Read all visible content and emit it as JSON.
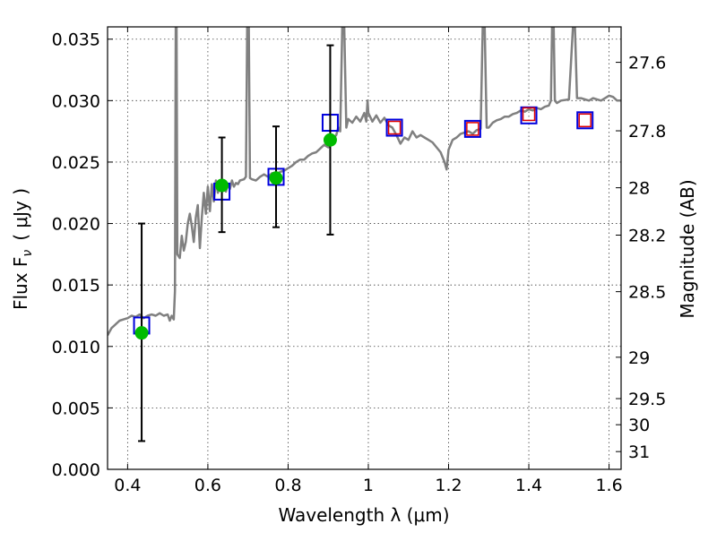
{
  "chart_data": {
    "type": "scatter",
    "xlabel": "Wavelength  λ (μm)",
    "ylabel": "Flux  F",
    "ylabel_sub": "ν",
    "ylabel_units": "( μJy )",
    "y2label": "Magnitude (AB)",
    "xlim": [
      0.35,
      1.63
    ],
    "ylim": [
      0.0,
      0.036
    ],
    "x_ticks": [
      0.4,
      0.6,
      0.8,
      1.0,
      1.2,
      1.4,
      1.6
    ],
    "x_tick_labels": [
      "0.4",
      "0.6",
      "0.8",
      "1",
      "1.2",
      "1.4",
      "1.6"
    ],
    "y_ticks": [
      0.0,
      0.005,
      0.01,
      0.015,
      0.02,
      0.025,
      0.03,
      0.035
    ],
    "y_tick_labels": [
      "0.000",
      "0.005",
      "0.010",
      "0.015",
      "0.020",
      "0.025",
      "0.030",
      "0.035"
    ],
    "y2_ticks": [
      27.6,
      27.8,
      28,
      28.2,
      28.5,
      29,
      29.5,
      30,
      31
    ],
    "y2_tick_labels": [
      "27.6",
      "27.8",
      "28",
      "28.2",
      "28.5",
      "29",
      "29.5",
      "30",
      "31"
    ],
    "grid": true,
    "colors": {
      "spectrum": "#808080",
      "model_box": "#0000dd",
      "model_box_inner": "#dd0000",
      "observed": "#00bb00",
      "errorbar": "#000000"
    },
    "series": [
      {
        "type": "line",
        "points": [
          [
            0.35,
            0.0109
          ],
          [
            0.36,
            0.0115
          ],
          [
            0.37,
            0.0118
          ],
          [
            0.38,
            0.0121
          ],
          [
            0.39,
            0.0122
          ],
          [
            0.4,
            0.0123
          ],
          [
            0.41,
            0.0125
          ],
          [
            0.42,
            0.0124
          ],
          [
            0.43,
            0.0126
          ],
          [
            0.44,
            0.0123
          ],
          [
            0.45,
            0.0125
          ],
          [
            0.46,
            0.0126
          ],
          [
            0.47,
            0.0125
          ],
          [
            0.48,
            0.0127
          ],
          [
            0.49,
            0.0125
          ],
          [
            0.5,
            0.0126
          ],
          [
            0.505,
            0.0121
          ],
          [
            0.51,
            0.0125
          ],
          [
            0.515,
            0.0122
          ],
          [
            0.518,
            0.0145
          ],
          [
            0.52,
            0.036
          ],
          [
            0.522,
            0.036
          ],
          [
            0.524,
            0.0175
          ],
          [
            0.53,
            0.0172
          ],
          [
            0.535,
            0.019
          ],
          [
            0.54,
            0.0178
          ],
          [
            0.545,
            0.0185
          ],
          [
            0.55,
            0.02
          ],
          [
            0.555,
            0.0208
          ],
          [
            0.56,
            0.0198
          ],
          [
            0.565,
            0.0185
          ],
          [
            0.57,
            0.0205
          ],
          [
            0.575,
            0.0215
          ],
          [
            0.58,
            0.018
          ],
          [
            0.585,
            0.0205
          ],
          [
            0.59,
            0.0225
          ],
          [
            0.595,
            0.0208
          ],
          [
            0.6,
            0.023
          ],
          [
            0.605,
            0.021
          ],
          [
            0.61,
            0.0232
          ],
          [
            0.615,
            0.0218
          ],
          [
            0.62,
            0.0235
          ],
          [
            0.625,
            0.0225
          ],
          [
            0.63,
            0.023
          ],
          [
            0.635,
            0.0228
          ],
          [
            0.64,
            0.0232
          ],
          [
            0.645,
            0.0226
          ],
          [
            0.65,
            0.0232
          ],
          [
            0.655,
            0.0228
          ],
          [
            0.66,
            0.0235
          ],
          [
            0.665,
            0.023
          ],
          [
            0.67,
            0.0233
          ],
          [
            0.675,
            0.0232
          ],
          [
            0.68,
            0.0235
          ],
          [
            0.69,
            0.0236
          ],
          [
            0.695,
            0.0238
          ],
          [
            0.698,
            0.036
          ],
          [
            0.702,
            0.036
          ],
          [
            0.705,
            0.0237
          ],
          [
            0.71,
            0.0236
          ],
          [
            0.72,
            0.0235
          ],
          [
            0.73,
            0.0238
          ],
          [
            0.74,
            0.024
          ],
          [
            0.75,
            0.0238
          ],
          [
            0.76,
            0.0241
          ],
          [
            0.77,
            0.0239
          ],
          [
            0.78,
            0.0242
          ],
          [
            0.79,
            0.0243
          ],
          [
            0.8,
            0.0245
          ],
          [
            0.81,
            0.0247
          ],
          [
            0.82,
            0.025
          ],
          [
            0.83,
            0.0252
          ],
          [
            0.84,
            0.0252
          ],
          [
            0.85,
            0.0255
          ],
          [
            0.86,
            0.0257
          ],
          [
            0.87,
            0.0258
          ],
          [
            0.88,
            0.0261
          ],
          [
            0.89,
            0.0264
          ],
          [
            0.9,
            0.0262
          ],
          [
            0.91,
            0.0268
          ],
          [
            0.915,
            0.027
          ],
          [
            0.92,
            0.0272
          ],
          [
            0.925,
            0.0278
          ],
          [
            0.93,
            0.0275
          ],
          [
            0.935,
            0.036
          ],
          [
            0.94,
            0.036
          ],
          [
            0.945,
            0.0278
          ],
          [
            0.95,
            0.0285
          ],
          [
            0.96,
            0.0282
          ],
          [
            0.97,
            0.0287
          ],
          [
            0.98,
            0.0283
          ],
          [
            0.99,
            0.029
          ],
          [
            0.995,
            0.0283
          ],
          [
            0.998,
            0.03
          ],
          [
            1.0,
            0.029
          ],
          [
            1.01,
            0.0283
          ],
          [
            1.02,
            0.0288
          ],
          [
            1.03,
            0.0282
          ],
          [
            1.04,
            0.0286
          ],
          [
            1.05,
            0.028
          ],
          [
            1.06,
            0.0278
          ],
          [
            1.07,
            0.0272
          ],
          [
            1.08,
            0.0265
          ],
          [
            1.09,
            0.027
          ],
          [
            1.1,
            0.0268
          ],
          [
            1.11,
            0.0275
          ],
          [
            1.12,
            0.027
          ],
          [
            1.13,
            0.0272
          ],
          [
            1.14,
            0.027
          ],
          [
            1.15,
            0.0268
          ],
          [
            1.16,
            0.0266
          ],
          [
            1.17,
            0.0262
          ],
          [
            1.18,
            0.0258
          ],
          [
            1.19,
            0.025
          ],
          [
            1.195,
            0.0244
          ],
          [
            1.2,
            0.026
          ],
          [
            1.21,
            0.0268
          ],
          [
            1.22,
            0.027
          ],
          [
            1.23,
            0.0273
          ],
          [
            1.24,
            0.0274
          ],
          [
            1.25,
            0.0275
          ],
          [
            1.26,
            0.0273
          ],
          [
            1.27,
            0.0276
          ],
          [
            1.28,
            0.0277
          ],
          [
            1.285,
            0.036
          ],
          [
            1.29,
            0.036
          ],
          [
            1.295,
            0.0278
          ],
          [
            1.3,
            0.0278
          ],
          [
            1.31,
            0.0282
          ],
          [
            1.32,
            0.0284
          ],
          [
            1.33,
            0.0285
          ],
          [
            1.34,
            0.0287
          ],
          [
            1.35,
            0.0287
          ],
          [
            1.36,
            0.0289
          ],
          [
            1.37,
            0.029
          ],
          [
            1.38,
            0.0292
          ],
          [
            1.39,
            0.0291
          ],
          [
            1.4,
            0.0293
          ],
          [
            1.41,
            0.0292
          ],
          [
            1.42,
            0.0294
          ],
          [
            1.43,
            0.0293
          ],
          [
            1.44,
            0.0295
          ],
          [
            1.45,
            0.0296
          ],
          [
            1.455,
            0.03
          ],
          [
            1.458,
            0.036
          ],
          [
            1.462,
            0.036
          ],
          [
            1.465,
            0.03
          ],
          [
            1.47,
            0.0298
          ],
          [
            1.48,
            0.03
          ],
          [
            1.5,
            0.0301
          ],
          [
            1.51,
            0.036
          ],
          [
            1.515,
            0.036
          ],
          [
            1.52,
            0.0302
          ],
          [
            1.53,
            0.0302
          ],
          [
            1.54,
            0.0301
          ],
          [
            1.55,
            0.03
          ],
          [
            1.56,
            0.0302
          ],
          [
            1.57,
            0.0301
          ],
          [
            1.58,
            0.03
          ],
          [
            1.59,
            0.0302
          ],
          [
            1.6,
            0.0304
          ],
          [
            1.61,
            0.0303
          ],
          [
            1.62,
            0.03
          ],
          [
            1.63,
            0.03
          ]
        ]
      },
      {
        "type": "scatter",
        "marker": "square",
        "points": [
          [
            0.435,
            0.0117
          ],
          [
            0.635,
            0.0226
          ],
          [
            0.77,
            0.0238
          ],
          [
            0.905,
            0.0282
          ],
          [
            1.065,
            0.0278
          ],
          [
            1.26,
            0.0277
          ],
          [
            1.4,
            0.0288
          ],
          [
            1.54,
            0.0284
          ]
        ]
      },
      {
        "type": "scatter",
        "marker": "square-inner",
        "points": [
          [
            1.065,
            0.0278
          ],
          [
            1.26,
            0.0277
          ],
          [
            1.4,
            0.0289
          ],
          [
            1.54,
            0.0284
          ]
        ]
      },
      {
        "type": "errorbar",
        "marker": "circle",
        "points": [
          {
            "x": 0.435,
            "y": 0.0111,
            "ylow": 0.0023,
            "yhigh": 0.02
          },
          {
            "x": 0.635,
            "y": 0.0231,
            "ylow": 0.0193,
            "yhigh": 0.027
          },
          {
            "x": 0.77,
            "y": 0.0237,
            "ylow": 0.0197,
            "yhigh": 0.0279
          },
          {
            "x": 0.905,
            "y": 0.0268,
            "ylow": 0.0191,
            "yhigh": 0.0345
          }
        ]
      }
    ]
  }
}
